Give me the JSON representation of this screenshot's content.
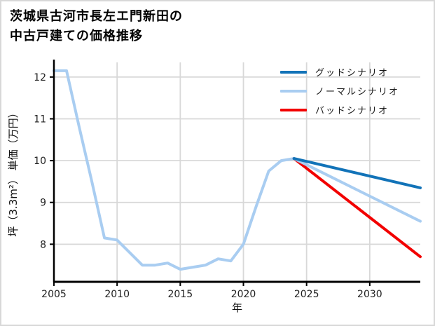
{
  "title": {
    "line1": "茨城県古河市長左エ門新田の",
    "line2": "中古戸建ての価格推移"
  },
  "chart_data": {
    "type": "line",
    "title": "茨城県古河市長左エ門新田の中古戸建ての価格推移",
    "xlabel": "年",
    "ylabel": "坪（3.3m²） 単価（万円）",
    "xlim": [
      2005,
      2034
    ],
    "ylim": [
      7.1,
      12.35
    ],
    "xticks": [
      2005,
      2010,
      2015,
      2020,
      2025,
      2030
    ],
    "yticks": [
      8,
      9,
      10,
      11,
      12
    ],
    "grid": true,
    "legend_position": "upper right",
    "colors": {
      "grid": "#d8d8d8",
      "axis": "#000000",
      "good": "#1273b8",
      "normal": "#a9cdf1",
      "bad": "#f20000"
    },
    "history": {
      "color": "#a9cdf1",
      "x": [
        2005,
        2006,
        2007,
        2008,
        2009,
        2010,
        2011,
        2012,
        2013,
        2014,
        2015,
        2016,
        2017,
        2018,
        2019,
        2020,
        2021,
        2022,
        2023,
        2024
      ],
      "y": [
        12.15,
        12.15,
        10.8,
        9.5,
        8.15,
        8.1,
        7.8,
        7.5,
        7.5,
        7.55,
        7.4,
        7.45,
        7.5,
        7.65,
        7.6,
        8.0,
        8.9,
        9.75,
        10.0,
        10.05
      ]
    },
    "series": [
      {
        "id": "good",
        "label": "グッドシナリオ",
        "color": "#1273b8",
        "x": [
          2024,
          2034
        ],
        "y": [
          10.05,
          9.35
        ]
      },
      {
        "id": "normal",
        "label": "ノーマルシナリオ",
        "color": "#a9cdf1",
        "x": [
          2024,
          2034
        ],
        "y": [
          10.05,
          8.55
        ]
      },
      {
        "id": "bad",
        "label": "バッドシナリオ",
        "color": "#f20000",
        "x": [
          2024,
          2034
        ],
        "y": [
          10.05,
          7.7
        ]
      }
    ]
  }
}
